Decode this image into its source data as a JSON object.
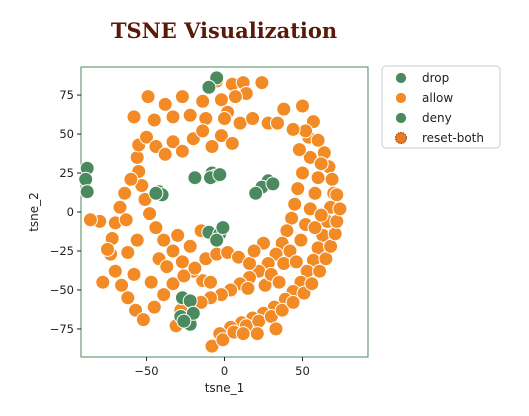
{
  "chart_data": {
    "type": "scatter",
    "title": "TSNE Visualization",
    "xlabel": "tsne_1",
    "ylabel": "tsne_2",
    "xlim": [
      -92,
      92
    ],
    "ylim": [
      -93,
      93
    ],
    "xticks": [
      -50,
      0,
      50
    ],
    "yticks": [
      75,
      50,
      25,
      0,
      -25,
      -50,
      -75
    ],
    "grid": false,
    "legend_position": "outside-right",
    "series": [
      {
        "name": "drop",
        "color": "#4a8a5e",
        "points": []
      },
      {
        "name": "allow",
        "color": "#f28b25",
        "points": [
          [
            -5,
            84
          ],
          [
            5,
            82
          ],
          [
            12,
            83
          ],
          [
            24,
            83
          ],
          [
            14,
            76
          ],
          [
            7,
            74
          ],
          [
            -2,
            72
          ],
          [
            -14,
            71
          ],
          [
            -27,
            74
          ],
          [
            -38,
            69
          ],
          [
            -49,
            74
          ],
          [
            -58,
            61
          ],
          [
            -45,
            59
          ],
          [
            -33,
            61
          ],
          [
            -22,
            62
          ],
          [
            -12,
            60
          ],
          [
            2,
            64
          ],
          [
            10,
            57
          ],
          [
            18,
            60
          ],
          [
            28,
            57
          ],
          [
            38,
            66
          ],
          [
            50,
            68
          ],
          [
            57,
            58
          ],
          [
            54,
            48
          ],
          [
            60,
            46
          ],
          [
            64,
            38
          ],
          [
            67,
            29
          ],
          [
            69,
            21
          ],
          [
            70,
            12
          ],
          [
            68,
            3
          ],
          [
            66,
            -6
          ],
          [
            63,
            -15
          ],
          [
            60,
            -23
          ],
          [
            57,
            -31
          ],
          [
            53,
            -38
          ],
          [
            49,
            -45
          ],
          [
            44,
            -51
          ],
          [
            39,
            -56
          ],
          [
            32,
            -61
          ],
          [
            25,
            -65
          ],
          [
            18,
            -68
          ],
          [
            11,
            -71
          ],
          [
            4,
            -74
          ],
          [
            -3,
            -78
          ],
          [
            -8,
            -86
          ],
          [
            -1,
            -82
          ],
          [
            6,
            -77
          ],
          [
            14,
            -73
          ],
          [
            22,
            -70
          ],
          [
            30,
            -67
          ],
          [
            37,
            -63
          ],
          [
            44,
            -58
          ],
          [
            51,
            -52
          ],
          [
            56,
            -46
          ],
          [
            61,
            -38
          ],
          [
            65,
            -30
          ],
          [
            68,
            -22
          ],
          [
            71,
            -14
          ],
          [
            72,
            -6
          ],
          [
            74,
            2
          ],
          [
            72,
            11
          ],
          [
            55,
            35
          ],
          [
            50,
            25
          ],
          [
            47,
            15
          ],
          [
            45,
            5
          ],
          [
            43,
            -4
          ],
          [
            40,
            -12
          ],
          [
            37,
            -20
          ],
          [
            33,
            -27
          ],
          [
            28,
            -33
          ],
          [
            22,
            -38
          ],
          [
            16,
            -42
          ],
          [
            10,
            -46
          ],
          [
            4,
            -50
          ],
          [
            -2,
            -53
          ],
          [
            -9,
            -55
          ],
          [
            -14,
            -44
          ],
          [
            -20,
            -38
          ],
          [
            -27,
            -32
          ],
          [
            -33,
            -25
          ],
          [
            -39,
            -18
          ],
          [
            -44,
            -10
          ],
          [
            -48,
            -1
          ],
          [
            -51,
            8
          ],
          [
            -53,
            17
          ],
          [
            -55,
            26
          ],
          [
            -56,
            35
          ],
          [
            -55,
            43
          ],
          [
            -50,
            48
          ],
          [
            -44,
            42
          ],
          [
            -38,
            37
          ],
          [
            -33,
            45
          ],
          [
            -27,
            39
          ],
          [
            -20,
            47
          ],
          [
            -14,
            52
          ],
          [
            -8,
            42
          ],
          [
            -2,
            49
          ],
          [
            5,
            44
          ],
          [
            -60,
            21
          ],
          [
            -64,
            12
          ],
          [
            -67,
            3
          ],
          [
            -70,
            -7
          ],
          [
            -72,
            -17
          ],
          [
            -73,
            -27
          ],
          [
            -70,
            -38
          ],
          [
            -66,
            -47
          ],
          [
            -62,
            -55
          ],
          [
            -57,
            -63
          ],
          [
            -52,
            -69
          ],
          [
            -45,
            -61
          ],
          [
            -39,
            -53
          ],
          [
            -33,
            -46
          ],
          [
            -26,
            -41
          ],
          [
            -19,
            -36
          ],
          [
            -12,
            -30
          ],
          [
            -5,
            -27
          ],
          [
            2,
            -26
          ],
          [
            9,
            -29
          ],
          [
            16,
            -33
          ],
          [
            -80,
            -6
          ],
          [
            -86,
            -5
          ],
          [
            -75,
            -24
          ],
          [
            -62,
            -26
          ],
          [
            -56,
            -18
          ],
          [
            -42,
            -30
          ],
          [
            -37,
            -35
          ],
          [
            -30,
            -15
          ],
          [
            -22,
            -22
          ],
          [
            -15,
            -12
          ],
          [
            -58,
            -40
          ],
          [
            -78,
            -45
          ],
          [
            -63,
            -5
          ],
          [
            -47,
            -45
          ],
          [
            -21,
            -60
          ],
          [
            -15,
            -58
          ],
          [
            -9,
            -45
          ],
          [
            15,
            -49
          ],
          [
            26,
            -47
          ],
          [
            30,
            -40
          ],
          [
            35,
            -45
          ],
          [
            38,
            -33
          ],
          [
            42,
            -25
          ],
          [
            46,
            -32
          ],
          [
            49,
            -18
          ],
          [
            52,
            -8
          ],
          [
            55,
            2
          ],
          [
            58,
            12
          ],
          [
            60,
            22
          ],
          [
            62,
            31
          ],
          [
            58,
            -10
          ],
          [
            62,
            -2
          ],
          [
            33,
            -75
          ],
          [
            21,
            -78
          ],
          [
            12,
            -78
          ],
          [
            -28,
            -63
          ],
          [
            -31,
            -73
          ],
          [
            25,
            -20
          ],
          [
            19,
            -25
          ],
          [
            48,
            40
          ],
          [
            52,
            52
          ],
          [
            44,
            53
          ],
          [
            34,
            57
          ],
          [
            0,
            60
          ]
        ]
      },
      {
        "name": "deny",
        "color": "#4a8a5e",
        "points": [
          [
            -88,
            28
          ],
          [
            -89,
            21
          ],
          [
            -88,
            13
          ],
          [
            -5,
            86
          ],
          [
            -10,
            80
          ],
          [
            -19,
            22
          ],
          [
            -8,
            25
          ],
          [
            -6,
            23
          ],
          [
            -9,
            22
          ],
          [
            -3,
            24
          ],
          [
            -42,
            13
          ],
          [
            -40,
            11
          ],
          [
            -44,
            12
          ],
          [
            28,
            20
          ],
          [
            24,
            16
          ],
          [
            31,
            18
          ],
          [
            -27,
            -55
          ],
          [
            -22,
            -57
          ],
          [
            -28,
            -67
          ],
          [
            -22,
            -72
          ],
          [
            -20,
            -65
          ],
          [
            -26,
            -70
          ],
          [
            -10,
            -13
          ],
          [
            -3,
            -14
          ],
          [
            -5,
            -18
          ],
          [
            -1,
            -10
          ],
          [
            20,
            12
          ]
        ]
      },
      {
        "name": "reset-both",
        "color": "#e67a25",
        "points": []
      }
    ]
  }
}
